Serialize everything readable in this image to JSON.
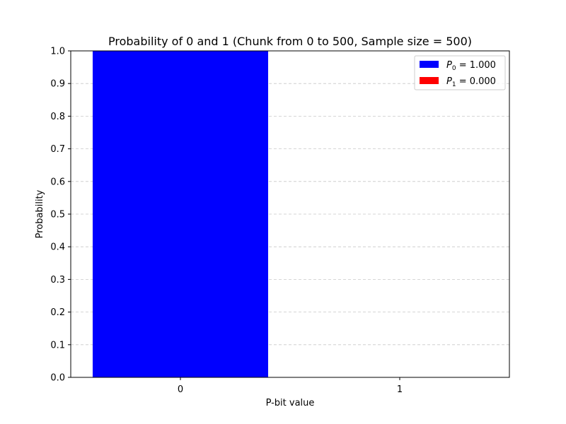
{
  "chart_data": {
    "type": "bar",
    "title": "Probability of 0 and 1 (Chunk from 0 to 500, Sample size = 500)",
    "xlabel": "P-bit value",
    "ylabel": "Probability",
    "categories": [
      "0",
      "1"
    ],
    "values": [
      1.0,
      0.0
    ],
    "colors": [
      "#0000ff",
      "#ff0000"
    ],
    "ylim": [
      0,
      1.0
    ],
    "yticks": [
      "0.0",
      "0.1",
      "0.2",
      "0.3",
      "0.4",
      "0.5",
      "0.6",
      "0.7",
      "0.8",
      "0.9",
      "1.0"
    ],
    "grid": "y-dashed",
    "legend": {
      "placement": "top-right",
      "entries": [
        {
          "var": "P",
          "sub": "0",
          "text": " = 1.000",
          "color": "#0000ff"
        },
        {
          "var": "P",
          "sub": "1",
          "text": " = 0.000",
          "color": "#ff0000"
        }
      ]
    }
  }
}
